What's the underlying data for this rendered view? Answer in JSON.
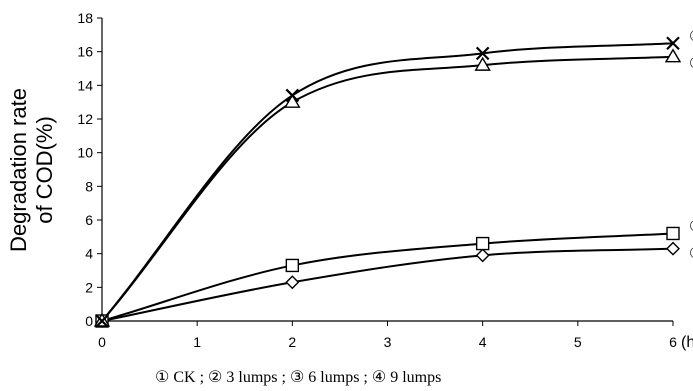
{
  "chart_data": {
    "type": "line",
    "xlabel": "(hr)",
    "ylabel_lines": [
      "Degradation rate",
      "of COD(%)"
    ],
    "xlim": [
      0,
      6
    ],
    "ylim": [
      0,
      18
    ],
    "x_ticks": [
      0,
      1,
      2,
      3,
      4,
      5,
      6
    ],
    "y_ticks": [
      0,
      2,
      4,
      6,
      8,
      10,
      12,
      14,
      16,
      18
    ],
    "grid": false,
    "series": [
      {
        "marker_label": "①",
        "name": "CK",
        "marker": "diamond",
        "x": [
          0,
          2,
          4,
          6
        ],
        "y": [
          0,
          2.3,
          3.9,
          4.3
        ]
      },
      {
        "marker_label": "②",
        "name": "3 lumps",
        "marker": "square",
        "x": [
          0,
          2,
          4,
          6
        ],
        "y": [
          0,
          3.3,
          4.6,
          5.2
        ]
      },
      {
        "marker_label": "③",
        "name": "6 lumps",
        "marker": "triangle",
        "x": [
          0,
          2,
          4,
          6
        ],
        "y": [
          0,
          13.0,
          15.2,
          15.7
        ]
      },
      {
        "marker_label": "④",
        "name": "9 lumps",
        "marker": "x",
        "x": [
          0,
          2,
          4,
          6
        ],
        "y": [
          0,
          13.4,
          15.9,
          16.5
        ]
      }
    ],
    "legend": {
      "position": "bottom",
      "separator": ";"
    }
  }
}
